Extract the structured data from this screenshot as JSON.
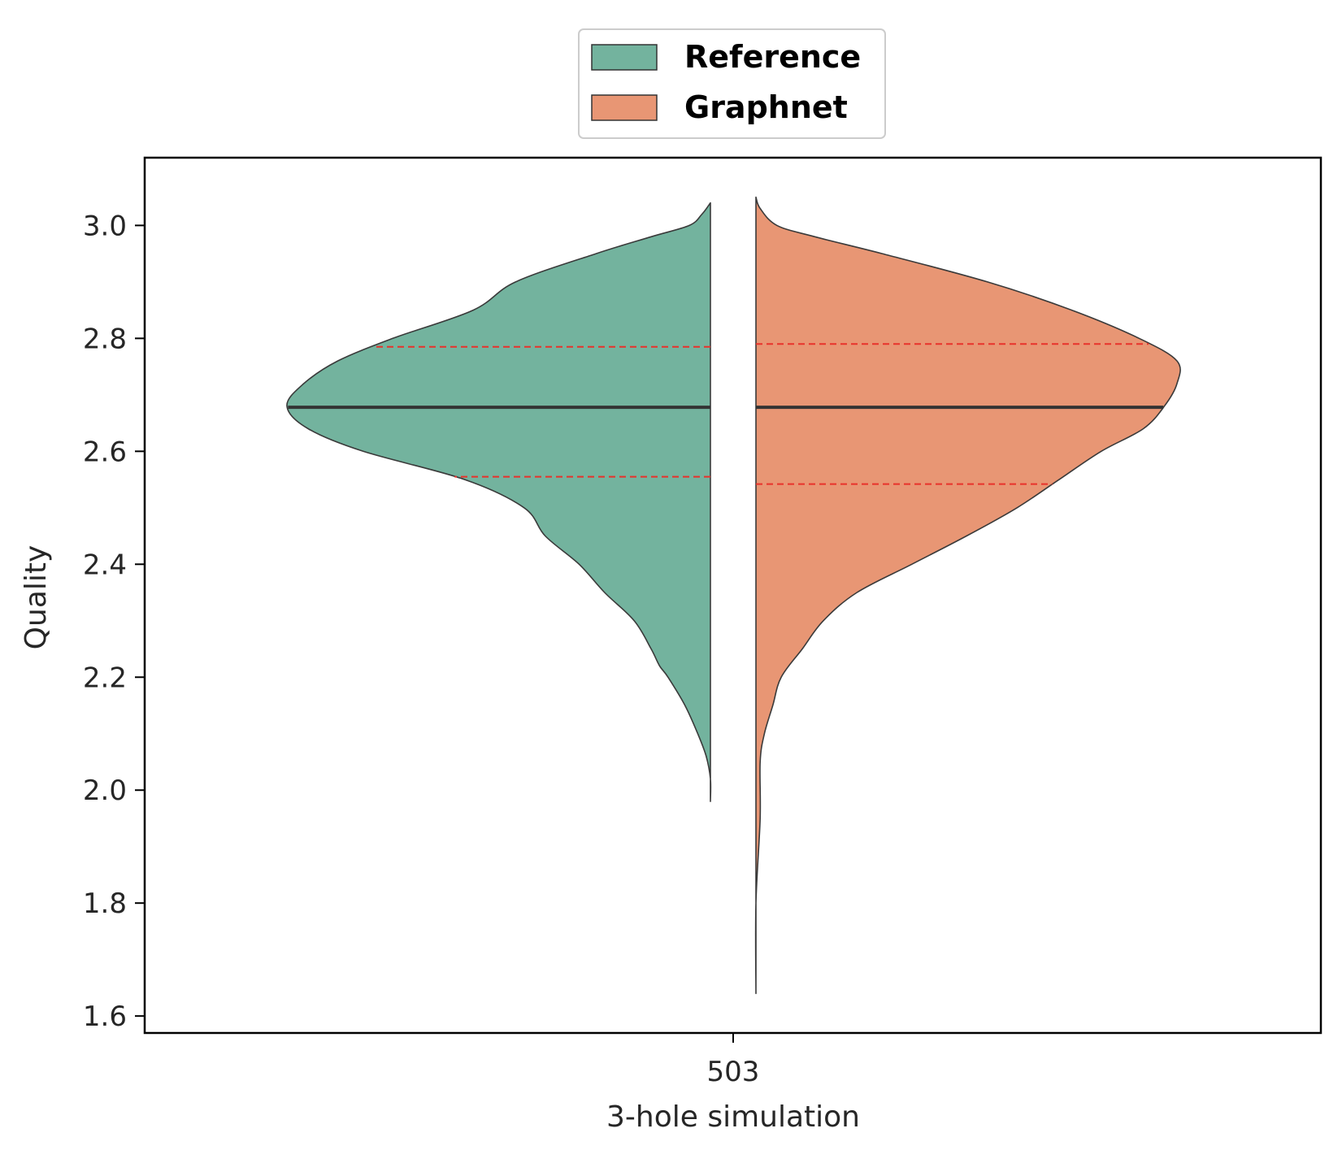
{
  "chart_data": {
    "type": "violin",
    "split": true,
    "xlabel": "3-hole simulation",
    "ylabel": "Quality",
    "categories": [
      "503"
    ],
    "ylim": [
      1.57,
      3.12
    ],
    "yticks": [
      "1.6",
      "1.8",
      "2.0",
      "2.2",
      "2.4",
      "2.6",
      "2.8",
      "3.0"
    ],
    "legend_position": "top-center",
    "grid": false,
    "series": [
      {
        "name": "Reference",
        "color": "#73b39e",
        "side": "left",
        "median": 2.678,
        "q1": 2.555,
        "q3": 2.785,
        "range": [
          1.98,
          3.04
        ],
        "density_profile": [
          [
            1.98,
            0.0
          ],
          [
            2.02,
            0.0
          ],
          [
            2.06,
            0.01
          ],
          [
            2.1,
            0.03
          ],
          [
            2.15,
            0.06
          ],
          [
            2.2,
            0.1
          ],
          [
            2.22,
            0.12
          ],
          [
            2.25,
            0.14
          ],
          [
            2.3,
            0.18
          ],
          [
            2.35,
            0.25
          ],
          [
            2.4,
            0.31
          ],
          [
            2.45,
            0.39
          ],
          [
            2.5,
            0.44
          ],
          [
            2.55,
            0.58
          ],
          [
            2.6,
            0.82
          ],
          [
            2.64,
            0.95
          ],
          [
            2.68,
            1.0
          ],
          [
            2.72,
            0.96
          ],
          [
            2.76,
            0.88
          ],
          [
            2.8,
            0.75
          ],
          [
            2.85,
            0.56
          ],
          [
            2.9,
            0.46
          ],
          [
            2.95,
            0.27
          ],
          [
            2.98,
            0.14
          ],
          [
            3.0,
            0.05
          ],
          [
            3.02,
            0.02
          ],
          [
            3.04,
            0.0
          ]
        ]
      },
      {
        "name": "Graphnet",
        "color": "#e89674",
        "side": "right",
        "median": 2.678,
        "q1": 2.542,
        "q3": 2.79,
        "range": [
          1.64,
          3.05
        ],
        "density_profile": [
          [
            1.64,
            0.0
          ],
          [
            1.8,
            0.0
          ],
          [
            1.95,
            0.01
          ],
          [
            2.05,
            0.01
          ],
          [
            2.1,
            0.02
          ],
          [
            2.15,
            0.04
          ],
          [
            2.2,
            0.06
          ],
          [
            2.25,
            0.11
          ],
          [
            2.3,
            0.16
          ],
          [
            2.35,
            0.24
          ],
          [
            2.4,
            0.37
          ],
          [
            2.45,
            0.5
          ],
          [
            2.5,
            0.62
          ],
          [
            2.55,
            0.72
          ],
          [
            2.6,
            0.82
          ],
          [
            2.64,
            0.92
          ],
          [
            2.68,
            0.97
          ],
          [
            2.72,
            1.0
          ],
          [
            2.76,
            1.0
          ],
          [
            2.8,
            0.91
          ],
          [
            2.85,
            0.75
          ],
          [
            2.9,
            0.55
          ],
          [
            2.95,
            0.3
          ],
          [
            2.98,
            0.14
          ],
          [
            3.0,
            0.05
          ],
          [
            3.03,
            0.01
          ],
          [
            3.05,
            0.0
          ]
        ]
      }
    ]
  }
}
